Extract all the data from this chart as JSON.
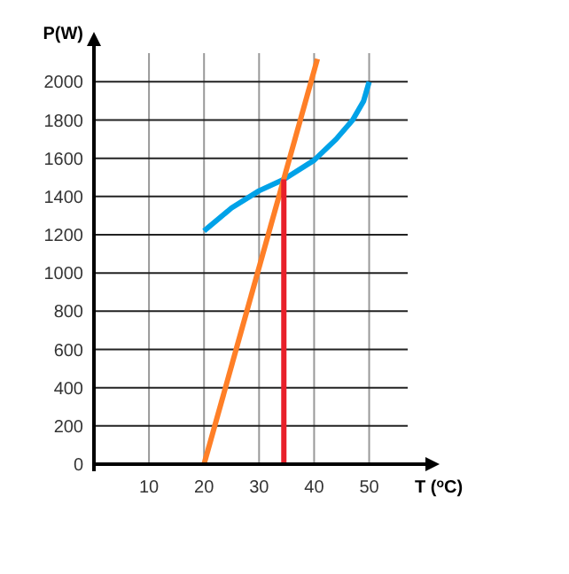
{
  "chart_data": {
    "type": "line",
    "xlabel": "T ($^{o}$C)",
    "ylabel": "P(W)",
    "xlim": [
      0,
      57
    ],
    "ylim": [
      0,
      2150
    ],
    "xticks": [
      10,
      20,
      30,
      40,
      50
    ],
    "yticks": [
      0,
      200,
      400,
      600,
      800,
      1000,
      1200,
      1400,
      1600,
      1800,
      2000
    ],
    "grid": true,
    "series": [
      {
        "color": "#00a2e8",
        "x": [
          20,
          25,
          30,
          34.5,
          40,
          44,
          47,
          49,
          50
        ],
        "values": [
          1220,
          1340,
          1430,
          1490,
          1590,
          1700,
          1800,
          1900,
          2000
        ]
      },
      {
        "color": "#ff7f27",
        "x": [
          20,
          40.6
        ],
        "values": [
          0,
          2120
        ]
      },
      {
        "color": "#e8202a",
        "x": [
          34.5,
          34.5
        ],
        "values": [
          0,
          1490
        ]
      }
    ]
  }
}
